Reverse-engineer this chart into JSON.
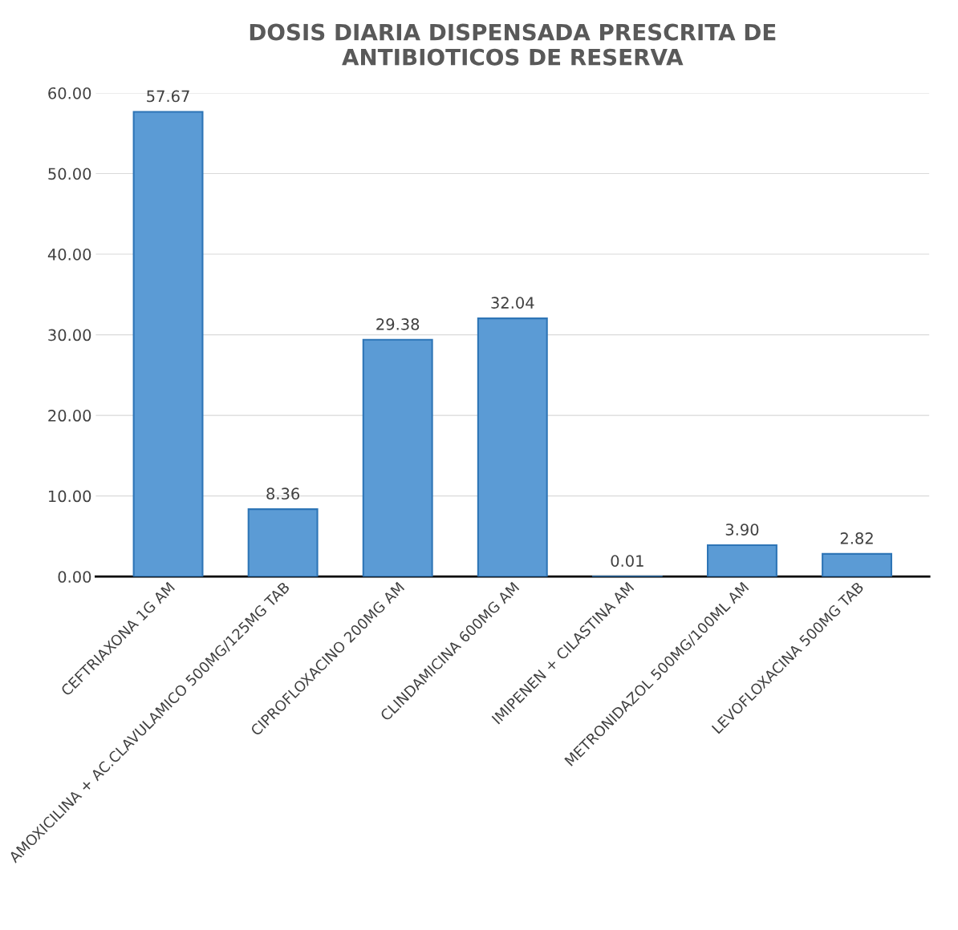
{
  "chart_data": {
    "type": "bar",
    "title": "DOSIS DIARIA DISPENSADA PRESCRITA DE\nANTIBIOTICOS DE RESERVA",
    "categories": [
      "CEFTRIAXONA 1G AM",
      "AMOXICILINA + AC.CLAVULAMICO 500MG/125MG TAB",
      "CIPROFLOXACINO 200MG AM",
      "CLINDAMICINA 600MG AM",
      "IMIPENEN + CILASTINA AM",
      "METRONIDAZOL 500MG/100ML AM",
      "LEVOFLOXACINA 500MG TAB"
    ],
    "values": [
      57.67,
      8.36,
      29.38,
      32.04,
      0.01,
      3.9,
      2.82
    ],
    "value_labels": [
      "57.67",
      "8.36",
      "29.38",
      "32.04",
      "0.01",
      "3.90",
      "2.82"
    ],
    "color": "#5b9bd5",
    "ylim": [
      0,
      60
    ],
    "yticks": [
      {
        "value": 0,
        "label": "0.00"
      },
      {
        "value": 10,
        "label": "10.00"
      },
      {
        "value": 20,
        "label": "20.00"
      },
      {
        "value": 30,
        "label": "30.00"
      },
      {
        "value": 40,
        "label": "40.00"
      },
      {
        "value": 50,
        "label": "50.00"
      },
      {
        "value": 60,
        "label": "60.00"
      }
    ],
    "grid": "y",
    "legend": false
  }
}
